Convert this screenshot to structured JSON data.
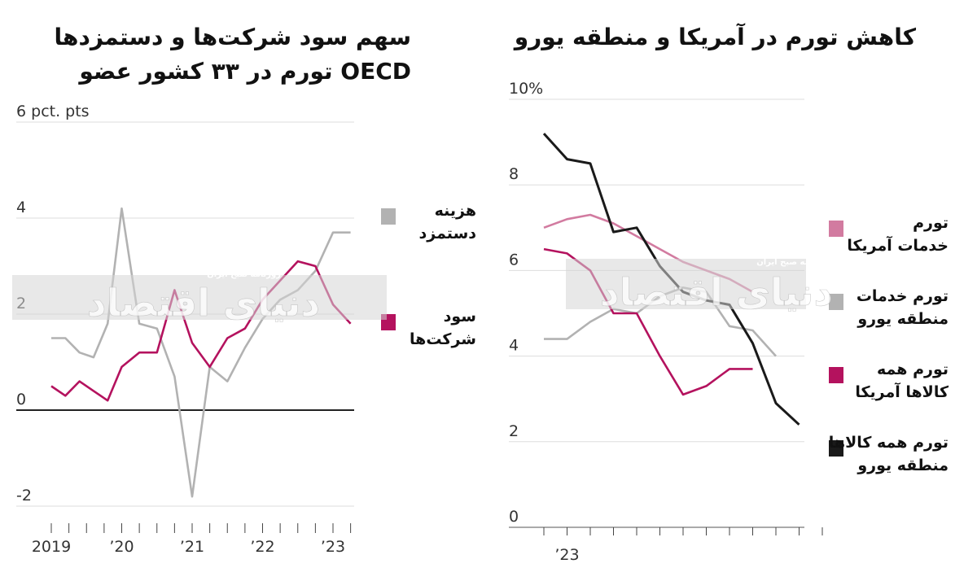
{
  "colors": {
    "pink": "#d27ba0",
    "magenta": "#b4125e",
    "gray": "#b2b2b2",
    "black": "#1a1a1a",
    "grid": "#dddddd",
    "watermark_band": "#d6d6d6"
  },
  "watermark": {
    "tag": "روزنامه صبح ایران",
    "text": "دنیای اقتصاد"
  },
  "chart_data": [
    {
      "type": "line",
      "title_lines": [
        "سهم سود شرکت‌ها و دستمزدها",
        "تورم در ۳۳ کشور عضو OECD"
      ],
      "ylabel": "",
      "yunit": "pct. pts",
      "ylim": [
        -2.6,
        6.2
      ],
      "yticks": [
        -2,
        0,
        2,
        4,
        6
      ],
      "ytick_labels": [
        "-2",
        "0",
        "2",
        "4",
        "6 pct. pts"
      ],
      "xlim": [
        2019,
        2023.4
      ],
      "xticks": [
        2019,
        2020,
        2021,
        2022,
        2023
      ],
      "xtick_labels": [
        "2019",
        "’20",
        "’21",
        "’22",
        "’23"
      ],
      "grid": true,
      "legend_position": "right",
      "series": [
        {
          "name": "هزینه دستمزد",
          "color": "gray",
          "x": [
            2019.0,
            2019.2,
            2019.4,
            2019.6,
            2019.8,
            2020.0,
            2020.25,
            2020.5,
            2020.75,
            2021.0,
            2021.25,
            2021.5,
            2021.75,
            2022.0,
            2022.25,
            2022.5,
            2022.75,
            2023.0,
            2023.25
          ],
          "values": [
            1.5,
            1.5,
            1.2,
            1.1,
            1.8,
            4.2,
            1.8,
            1.7,
            0.7,
            -1.8,
            0.9,
            0.6,
            1.3,
            1.9,
            2.3,
            2.5,
            2.9,
            3.7,
            3.7
          ]
        },
        {
          "name": "سود شرکت‌ها",
          "color": "magenta",
          "x": [
            2019.0,
            2019.2,
            2019.4,
            2019.6,
            2019.8,
            2020.0,
            2020.25,
            2020.5,
            2020.75,
            2021.0,
            2021.25,
            2021.5,
            2021.75,
            2022.0,
            2022.25,
            2022.5,
            2022.75,
            2023.0,
            2023.25
          ],
          "values": [
            0.5,
            0.3,
            0.6,
            0.4,
            0.2,
            0.9,
            1.2,
            1.2,
            2.5,
            1.4,
            0.9,
            1.5,
            1.7,
            2.3,
            2.7,
            3.1,
            3.0,
            2.2,
            1.8
          ]
        }
      ],
      "legend": [
        {
          "label_lines": [
            "هزینه",
            "دستمزد"
          ],
          "color": "gray"
        },
        {
          "label_lines": [
            "سود",
            "شرکت‌ها"
          ],
          "color": "magenta"
        }
      ]
    },
    {
      "type": "line",
      "title_lines": [
        "کاهش تورم در آمریکا و منطقه یورو"
      ],
      "ylabel": "",
      "yunit": "%",
      "ylim": [
        -0.3,
        10.4
      ],
      "yticks": [
        0,
        2,
        4,
        6,
        8,
        10
      ],
      "ytick_labels": [
        "0",
        "2",
        "4",
        "6",
        "8",
        "10%"
      ],
      "xlim": [
        2022.8,
        2024.0
      ],
      "xticks": [
        2023.0
      ],
      "xtick_labels": [
        "’23"
      ],
      "grid": true,
      "legend_position": "right",
      "series": [
        {
          "name": "تورم خدمات آمریکا",
          "color": "pink",
          "x": [
            2022.9,
            2023.0,
            2023.1,
            2023.2,
            2023.3,
            2023.4,
            2023.5,
            2023.6,
            2023.7,
            2023.8
          ],
          "values": [
            7.0,
            7.2,
            7.3,
            7.1,
            6.8,
            6.5,
            6.2,
            6.0,
            5.8,
            5.5
          ]
        },
        {
          "name": "تورم خدمات منطقه یورو",
          "color": "gray",
          "x": [
            2022.9,
            2023.0,
            2023.1,
            2023.2,
            2023.3,
            2023.4,
            2023.5,
            2023.6,
            2023.7,
            2023.8,
            2023.9
          ],
          "values": [
            4.4,
            4.4,
            4.8,
            5.1,
            5.0,
            5.4,
            5.6,
            5.5,
            4.7,
            4.6,
            4.0
          ]
        },
        {
          "name": "تورم همه کالاها آمریکا",
          "color": "magenta",
          "x": [
            2022.9,
            2023.0,
            2023.1,
            2023.2,
            2023.3,
            2023.4,
            2023.5,
            2023.6,
            2023.7,
            2023.8
          ],
          "values": [
            6.5,
            6.4,
            6.0,
            5.0,
            5.0,
            4.0,
            3.1,
            3.3,
            3.7,
            3.7
          ]
        },
        {
          "name": "تورم همه کالاها منطقه یورو",
          "color": "black",
          "x": [
            2022.9,
            2023.0,
            2023.1,
            2023.2,
            2023.3,
            2023.4,
            2023.5,
            2023.6,
            2023.7,
            2023.8,
            2023.9,
            2024.0
          ],
          "values": [
            9.2,
            8.6,
            8.5,
            6.9,
            7.0,
            6.1,
            5.5,
            5.3,
            5.2,
            4.3,
            2.9,
            2.4
          ]
        }
      ],
      "legend": [
        {
          "label_lines": [
            "تورم",
            "خدمات آمریکا"
          ],
          "color": "pink"
        },
        {
          "label_lines": [
            "تورم خدمات",
            "منطقه یورو"
          ],
          "color": "gray"
        },
        {
          "label_lines": [
            "تورم همه",
            "کالاها آمریکا"
          ],
          "color": "magenta"
        },
        {
          "label_lines": [
            "تورم همه کالاها",
            "منطقه یورو"
          ],
          "color": "black"
        }
      ]
    }
  ]
}
